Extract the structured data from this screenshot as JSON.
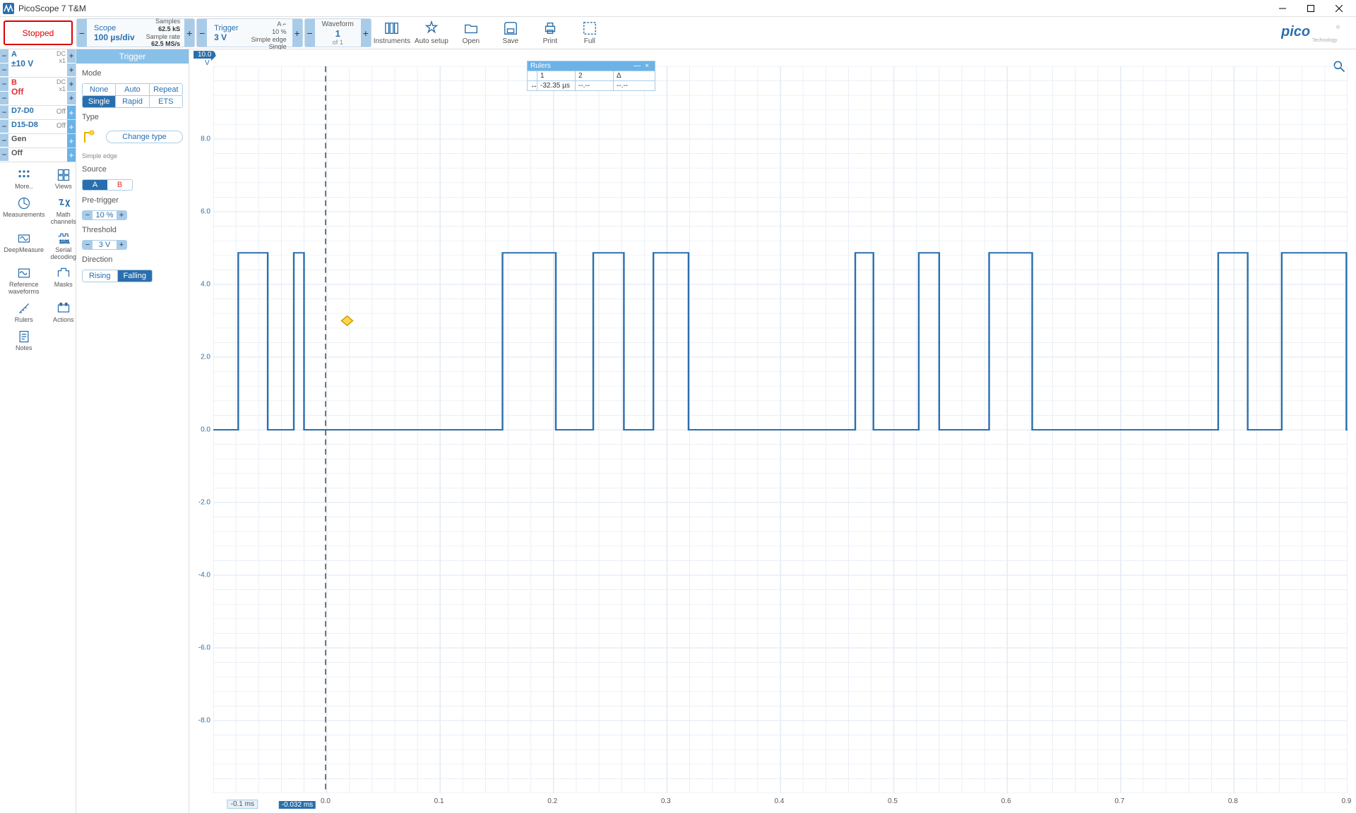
{
  "window": {
    "title": "PicoScope 7 T&M"
  },
  "toolbar": {
    "stopped": "Stopped",
    "scope": {
      "title": "Scope",
      "value": "100 µs/div"
    },
    "samples": {
      "label1": "Samples",
      "val1": "62.5 kS",
      "label2": "Sample rate",
      "val2": "62.5 MS/s"
    },
    "trigger": {
      "title": "Trigger",
      "value": "3 V",
      "line1": "10 %",
      "line2": "Simple edge",
      "line3": "Single",
      "ornament": "A    ⌐"
    },
    "waveform": {
      "title": "Waveform",
      "num": "1",
      "of": "of 1"
    },
    "buttons": {
      "instruments": "Instruments",
      "autosetup": "Auto setup",
      "open": "Open",
      "save": "Save",
      "print": "Print",
      "full": "Full"
    }
  },
  "channels": {
    "a": {
      "name": "A",
      "val": "±10 V",
      "dc": "DC",
      "x1": "x1"
    },
    "b": {
      "name": "B",
      "val": "Off",
      "dc": "DC",
      "x1": "x1"
    },
    "d1": {
      "name": "D7-D0",
      "state": "Off"
    },
    "d2": {
      "name": "D15-D8",
      "state": "Off"
    },
    "gen": {
      "name": "Gen"
    },
    "off": {
      "name": "Off"
    }
  },
  "tools": {
    "more": "More..",
    "views": "Views",
    "measurements": "Measurements",
    "math": "Math channels",
    "deep": "DeepMeasure",
    "serial": "Serial decoding",
    "refwave": "Reference waveforms",
    "masks": "Masks",
    "rulers": "Rulers",
    "actions": "Actions",
    "notes": "Notes"
  },
  "trigger_panel": {
    "title": "Trigger",
    "mode_label": "Mode",
    "modes": [
      "None",
      "Auto",
      "Repeat",
      "Single",
      "Rapid",
      "ETS"
    ],
    "mode_active": "Single",
    "type_label": "Type",
    "change_type": "Change type",
    "simple_edge": "Simple edge",
    "source_label": "Source",
    "src_a": "A",
    "src_b": "B",
    "pretrigger_label": "Pre-trigger",
    "pretrigger_val": "10 %",
    "threshold_label": "Threshold",
    "threshold_val": "3 V",
    "direction_label": "Direction",
    "rising": "Rising",
    "falling": "Falling"
  },
  "chart": {
    "y_badge": "10.0",
    "v": "V",
    "y_ticks": [
      {
        "v": "8.0",
        "p": 10
      },
      {
        "v": "6.0",
        "p": 20
      },
      {
        "v": "4.0",
        "p": 30
      },
      {
        "v": "2.0",
        "p": 40
      },
      {
        "v": "0.0",
        "p": 50
      },
      {
        "v": "-2.0",
        "p": 60
      },
      {
        "v": "-4.0",
        "p": 70
      },
      {
        "v": "-6.0",
        "p": 80
      },
      {
        "v": "-8.0",
        "p": 90
      }
    ],
    "x_ticks": [
      {
        "v": "0.0",
        "p": 9.9
      },
      {
        "v": "0.1",
        "p": 19.9
      },
      {
        "v": "0.2",
        "p": 29.9
      },
      {
        "v": "0.3",
        "p": 39.9
      },
      {
        "v": "0.4",
        "p": 49.9
      },
      {
        "v": "0.5",
        "p": 59.9
      },
      {
        "v": "0.6",
        "p": 69.9
      },
      {
        "v": "0.7",
        "p": 79.9
      },
      {
        "v": "0.8",
        "p": 89.9
      },
      {
        "v": "0.9",
        "p": 99.9
      }
    ],
    "ruler1": {
      "val": "-0.1 ms",
      "p": 2.5
    },
    "ruler2": {
      "val": "-0.032 ms",
      "p": 7.2
    },
    "trace_color": "#2a6fad",
    "grid_color": "#e4ecf4",
    "pulses": [
      {
        "s": 2.2,
        "e": 4.8
      },
      {
        "s": 7.1,
        "e": 8.0
      },
      {
        "s": 25.5,
        "e": 30.2
      },
      {
        "s": 33.5,
        "e": 36.2
      },
      {
        "s": 38.8,
        "e": 41.9
      },
      {
        "s": 56.6,
        "e": 58.2
      },
      {
        "s": 62.2,
        "e": 64.0
      },
      {
        "s": 68.4,
        "e": 72.2
      },
      {
        "s": 88.6,
        "e": 91.2
      },
      {
        "s": 94.2,
        "e": 99.9
      }
    ]
  },
  "rulers_box": {
    "title": "Rulers",
    "h1": "1",
    "h2": "2",
    "h3": "Δ",
    "r1": "-32.35 µs",
    "r2": "--.--",
    "r3": "--.--"
  }
}
